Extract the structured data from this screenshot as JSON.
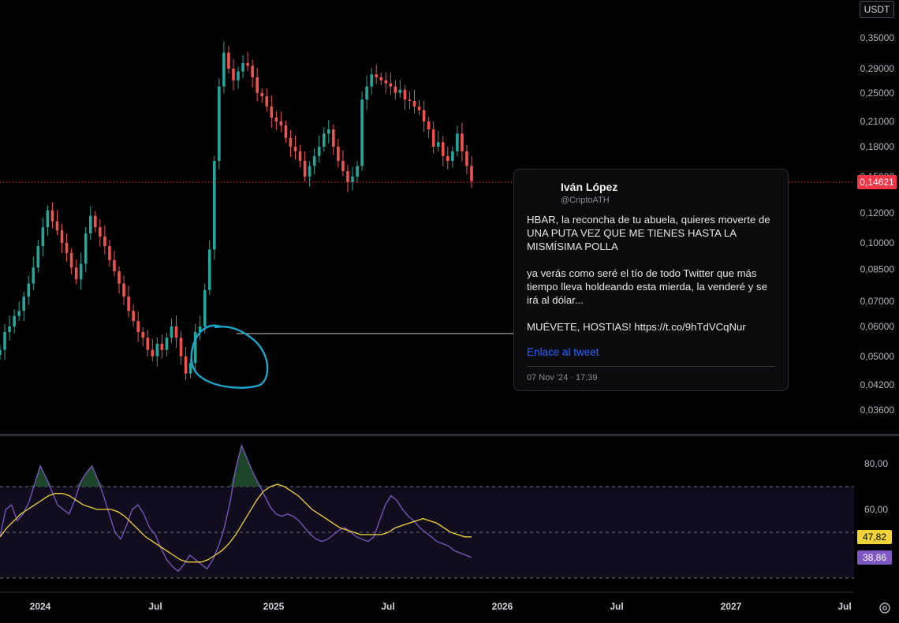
{
  "currency": "USDT",
  "price_axis": {
    "ticks": [
      "0,35000",
      "0,29000",
      "0,25000",
      "0,21000",
      "0,18000",
      "0,15000",
      "0,12000",
      "0,10000",
      "0,08500",
      "0,07000",
      "0,06000",
      "0,05000",
      "0,04200",
      "0,03600"
    ]
  },
  "last_price_label": "0,14621",
  "indicator_axis": {
    "ticks": [
      "80,00",
      "60,00"
    ]
  },
  "rsi_badge": "38,86",
  "rsi_ma_badge": "47,82",
  "time_axis": {
    "labels": [
      "2024",
      "Jul",
      "2025",
      "Jul",
      "2026",
      "Jul",
      "2027",
      "Jul"
    ]
  },
  "tweet": {
    "author_name": "Iván López",
    "author_handle": "@CriptoATH",
    "paragraphs": [
      "HBAR, la reconcha de tu abuela, quieres moverte de UNA PUTA VEZ QUE ME TIENES HASTA LA MISMÍSIMA POLLA",
      "ya verás como seré el tío de todo Twitter que más tiempo lleva holdeando esta mierda, la venderé y se irá al dólar...",
      "MUÉVETE, HOSTIAS! https://t.co/9hTdVCqNur"
    ],
    "link_label": "Enlace al tweet",
    "date": "07 Nov '24 · 17:39"
  },
  "colors": {
    "up": "#26a69a",
    "down": "#ef5350",
    "rsi_line": "#7e57c2",
    "rsi_ma": "#f0d33a",
    "annotation": "#1ea4c8",
    "price_line": "#f23645"
  },
  "chart_data": [
    {
      "type": "candlestick",
      "title": "",
      "y_scale": "log",
      "x_labels": [
        "2024",
        "Jul",
        "2025",
        "Jul",
        "2026",
        "Jul",
        "2027",
        "Jul"
      ],
      "y_ticks": [
        0.35,
        0.29,
        0.25,
        0.21,
        0.18,
        0.15,
        0.12,
        0.1,
        0.085,
        0.07,
        0.06,
        0.05,
        0.042,
        0.036
      ],
      "last_price": 0.14621,
      "close_path": [
        0.052,
        0.058,
        0.06,
        0.064,
        0.066,
        0.072,
        0.078,
        0.086,
        0.098,
        0.11,
        0.122,
        0.114,
        0.108,
        0.1,
        0.094,
        0.086,
        0.08,
        0.088,
        0.106,
        0.118,
        0.11,
        0.104,
        0.098,
        0.09,
        0.084,
        0.078,
        0.072,
        0.066,
        0.062,
        0.058,
        0.056,
        0.052,
        0.05,
        0.054,
        0.052,
        0.056,
        0.06,
        0.056,
        0.05,
        0.045,
        0.048,
        0.058,
        0.06,
        0.075,
        0.096,
        0.165,
        0.26,
        0.32,
        0.29,
        0.27,
        0.285,
        0.3,
        0.295,
        0.275,
        0.25,
        0.245,
        0.23,
        0.215,
        0.21,
        0.205,
        0.19,
        0.18,
        0.175,
        0.165,
        0.15,
        0.16,
        0.17,
        0.18,
        0.195,
        0.2,
        0.18,
        0.165,
        0.155,
        0.145,
        0.15,
        0.16,
        0.24,
        0.26,
        0.28,
        0.275,
        0.27,
        0.265,
        0.26,
        0.25,
        0.255,
        0.24,
        0.238,
        0.23,
        0.225,
        0.21,
        0.2,
        0.18,
        0.185,
        0.17,
        0.165,
        0.175,
        0.195,
        0.175,
        0.16,
        0.146
      ]
    },
    {
      "type": "line",
      "title": "",
      "y_ticks": [
        80,
        60
      ],
      "bands": [
        30,
        50,
        70
      ],
      "series": [
        {
          "values": [
            48,
            60,
            62,
            55,
            58,
            63,
            71,
            79,
            74,
            68,
            62,
            60,
            58,
            64,
            72,
            76,
            79,
            73,
            66,
            58,
            50,
            47,
            53,
            60,
            62,
            58,
            52,
            49,
            43,
            38,
            35,
            33,
            36,
            40,
            38,
            36,
            34,
            38,
            44,
            52,
            63,
            78,
            88,
            82,
            76,
            71,
            66,
            61,
            58,
            57,
            58,
            57,
            55,
            52,
            49,
            47,
            46,
            47,
            49,
            51,
            52,
            50,
            48,
            47,
            46,
            48,
            55,
            62,
            66,
            64,
            60,
            57,
            55,
            52,
            50,
            48,
            46,
            45,
            44,
            42,
            41,
            40,
            39
          ]
        },
        {
          "values": [
            48,
            52,
            55,
            58,
            60,
            62,
            64,
            66,
            67,
            67,
            66,
            64,
            62,
            61,
            60,
            60,
            60,
            59,
            57,
            54,
            51,
            48,
            46,
            44,
            42,
            40,
            38,
            37,
            37,
            37,
            38,
            40,
            42,
            45,
            49,
            54,
            59,
            64,
            68,
            70,
            71,
            70,
            68,
            66,
            63,
            60,
            58,
            56,
            54,
            52,
            51,
            50,
            49,
            49,
            49,
            49,
            50,
            52,
            53,
            54,
            55,
            56,
            55,
            54,
            52,
            50,
            49,
            48,
            48
          ]
        }
      ]
    }
  ]
}
